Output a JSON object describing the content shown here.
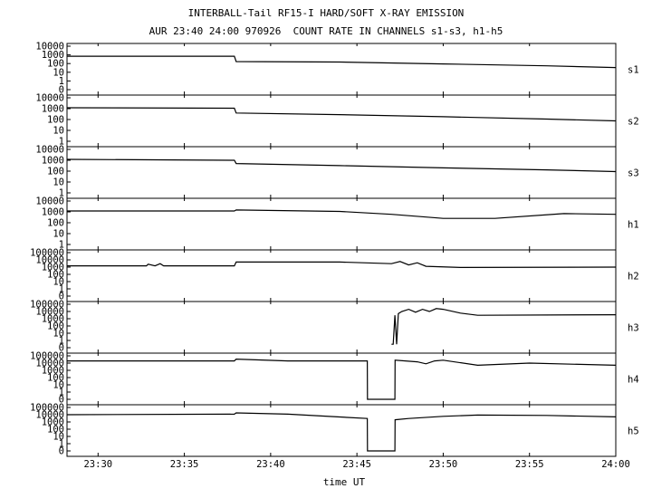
{
  "header": {
    "title": "INTERBALL-Tail RF15-I HARD/SOFT X-RAY EMISSION",
    "subtitle": "AUR 23:40 24:00 970926  COUNT RATE IN CHANNELS s1-s3, h1-h5"
  },
  "chart_data": {
    "type": "line",
    "title": "INTERBALL-Tail RF15-I HARD/SOFT X-RAY EMISSION",
    "subtitle": "AUR 23:40 24:00 970926  COUNT RATE IN CHANNELS s1-s3, h1-h5",
    "xlabel": "time UT",
    "x_ticks": [
      "23:30",
      "23:35",
      "23:40",
      "23:45",
      "23:50",
      "23:55",
      "24:00"
    ],
    "x_tick_minutes": [
      30,
      35,
      40,
      45,
      50,
      55,
      60
    ],
    "xlim_minutes_after_2300": [
      28.2,
      60
    ],
    "y_scale": "log",
    "grid": false,
    "panels": [
      {
        "name": "s1",
        "y_ticks": [
          "10000",
          "1000",
          "100",
          "10",
          "1",
          "0"
        ],
        "ymax_decades": 4,
        "series": [
          [
            28.2,
            700
          ],
          [
            37.9,
            700
          ],
          [
            38.0,
            170
          ],
          [
            44,
            150
          ],
          [
            50,
            90
          ],
          [
            56,
            55
          ],
          [
            60,
            35
          ]
        ]
      },
      {
        "name": "s2",
        "y_ticks": [
          "10000",
          "1000",
          "100",
          "10",
          "1"
        ],
        "ymax_decades": 4,
        "series": [
          [
            28.2,
            1200
          ],
          [
            37.9,
            1100
          ],
          [
            38.0,
            400
          ],
          [
            44,
            280
          ],
          [
            50,
            180
          ],
          [
            56,
            110
          ],
          [
            60,
            75
          ]
        ]
      },
      {
        "name": "s3",
        "y_ticks": [
          "10000",
          "1000",
          "100",
          "10",
          "1"
        ],
        "ymax_decades": 4,
        "series": [
          [
            28.2,
            1200
          ],
          [
            37.9,
            1000
          ],
          [
            38.0,
            500
          ],
          [
            44,
            320
          ],
          [
            50,
            200
          ],
          [
            56,
            130
          ],
          [
            60,
            90
          ]
        ]
      },
      {
        "name": "h1",
        "y_ticks": [
          "10000",
          "1000",
          "100",
          "10",
          "1"
        ],
        "ymax_decades": 4,
        "series": [
          [
            28.2,
            1200
          ],
          [
            37.9,
            1200
          ],
          [
            38.0,
            1500
          ],
          [
            44,
            1100
          ],
          [
            47,
            600
          ],
          [
            50,
            250
          ],
          [
            53,
            250
          ],
          [
            57,
            700
          ],
          [
            60,
            600
          ]
        ]
      },
      {
        "name": "h2",
        "y_ticks": [
          "100000",
          "10000",
          "1000",
          "100",
          "10",
          "1",
          "0"
        ],
        "ymax_decades": 5,
        "series": [
          [
            28.2,
            1500
          ],
          [
            32.8,
            1500
          ],
          [
            32.9,
            2500
          ],
          [
            33.3,
            1500
          ],
          [
            33.6,
            3000
          ],
          [
            33.8,
            1500
          ],
          [
            37.9,
            1500
          ],
          [
            38.0,
            5000
          ],
          [
            44,
            5000
          ],
          [
            47,
            3000
          ],
          [
            47.5,
            6000
          ],
          [
            48,
            2000
          ],
          [
            48.5,
            4000
          ],
          [
            49,
            1300
          ],
          [
            51,
            900
          ],
          [
            60,
            1000
          ]
        ]
      },
      {
        "name": "h3",
        "y_ticks": [
          "100000",
          "10000",
          "1000",
          "100",
          "10",
          "1",
          "0"
        ],
        "ymax_decades": 5,
        "series": [
          [
            47.0,
            0.3
          ],
          [
            47.1,
            0.3
          ],
          [
            47.2,
            3000
          ],
          [
            47.3,
            0.3
          ],
          [
            47.4,
            5000
          ],
          [
            47.6,
            10000
          ],
          [
            48,
            20000
          ],
          [
            48.4,
            8000
          ],
          [
            48.8,
            20000
          ],
          [
            49.2,
            10000
          ],
          [
            49.6,
            25000
          ],
          [
            50,
            20000
          ],
          [
            51,
            6000
          ],
          [
            52,
            3000
          ],
          [
            60,
            3500
          ]
        ]
      },
      {
        "name": "h4",
        "y_ticks": [
          "100000",
          "10000",
          "1000",
          "100",
          "10",
          "1",
          "0"
        ],
        "ymax_decades": 5,
        "series": [
          [
            28.2,
            20000
          ],
          [
            37.9,
            20000
          ],
          [
            38.0,
            35000
          ],
          [
            41,
            20000
          ],
          [
            45.6,
            20000
          ],
          [
            45.61,
            0.1
          ],
          [
            47.2,
            0.1
          ],
          [
            47.21,
            25000
          ],
          [
            48.5,
            15000
          ],
          [
            49,
            8000
          ],
          [
            49.5,
            20000
          ],
          [
            50,
            25000
          ],
          [
            52,
            5000
          ],
          [
            55,
            10000
          ],
          [
            60,
            5000
          ]
        ]
      },
      {
        "name": "h5",
        "y_ticks": [
          "100000",
          "10000",
          "1000",
          "100",
          "10",
          "1",
          "0"
        ],
        "ymax_decades": 5,
        "series": [
          [
            28.2,
            10000
          ],
          [
            37.9,
            12000
          ],
          [
            38.0,
            18000
          ],
          [
            41,
            12000
          ],
          [
            45.6,
            3000
          ],
          [
            45.61,
            0.1
          ],
          [
            47.2,
            0.1
          ],
          [
            47.21,
            2000
          ],
          [
            48,
            3000
          ],
          [
            50,
            6000
          ],
          [
            52,
            9000
          ],
          [
            56,
            8000
          ],
          [
            60,
            5000
          ]
        ]
      }
    ]
  }
}
